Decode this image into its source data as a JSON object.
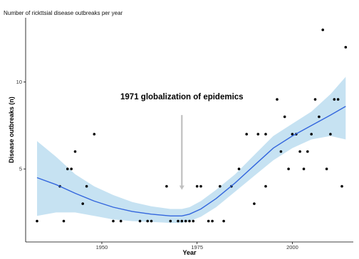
{
  "chart_data": {
    "type": "scatter",
    "title": "Number of rickttsial disease outbreaks per year",
    "xlabel": "Year",
    "ylabel": "Disease outbreaks (n)",
    "xlim": [
      1930,
      2016
    ],
    "ylim": [
      0.8,
      13.7
    ],
    "x_ticks": [
      1950,
      1975,
      2000
    ],
    "y_ticks": [
      5,
      10
    ],
    "grid": false,
    "points": [
      [
        1933,
        2
      ],
      [
        1939,
        4
      ],
      [
        1940,
        2
      ],
      [
        1941,
        5
      ],
      [
        1942,
        5
      ],
      [
        1943,
        6
      ],
      [
        1945,
        3
      ],
      [
        1946,
        4
      ],
      [
        1948,
        7
      ],
      [
        1953,
        2
      ],
      [
        1955,
        2
      ],
      [
        1960,
        2
      ],
      [
        1962,
        2
      ],
      [
        1963,
        2
      ],
      [
        1967,
        4
      ],
      [
        1968,
        2
      ],
      [
        1970,
        2
      ],
      [
        1971,
        2
      ],
      [
        1972,
        2
      ],
      [
        1973,
        2
      ],
      [
        1974,
        2
      ],
      [
        1975,
        4
      ],
      [
        1976,
        4
      ],
      [
        1978,
        2
      ],
      [
        1979,
        2
      ],
      [
        1981,
        4
      ],
      [
        1982,
        2
      ],
      [
        1984,
        4
      ],
      [
        1986,
        5
      ],
      [
        1988,
        7
      ],
      [
        1990,
        3
      ],
      [
        1991,
        7
      ],
      [
        1993,
        7
      ],
      [
        1993,
        4
      ],
      [
        1996,
        9
      ],
      [
        1997,
        6
      ],
      [
        1998,
        8
      ],
      [
        1999,
        5
      ],
      [
        2000,
        7
      ],
      [
        2001,
        7
      ],
      [
        2002,
        6
      ],
      [
        2003,
        5
      ],
      [
        2004,
        6
      ],
      [
        2005,
        7
      ],
      [
        2006,
        9
      ],
      [
        2007,
        8
      ],
      [
        2008,
        13
      ],
      [
        2009,
        5
      ],
      [
        2010,
        7
      ],
      [
        2011,
        9
      ],
      [
        2012,
        9
      ],
      [
        2013,
        4
      ],
      [
        2014,
        12
      ]
    ],
    "trend": {
      "type": "loess",
      "color": "#3366dd",
      "band_color": "#c6e2f2",
      "x": [
        1933,
        1938,
        1943,
        1948,
        1953,
        1958,
        1963,
        1968,
        1971,
        1973,
        1976,
        1980,
        1985,
        1990,
        1995,
        2000,
        2005,
        2010,
        2014
      ],
      "y": [
        4.5,
        4.1,
        3.6,
        3.15,
        2.8,
        2.55,
        2.4,
        2.3,
        2.3,
        2.4,
        2.7,
        3.3,
        4.2,
        5.2,
        6.2,
        6.9,
        7.5,
        8.1,
        8.6
      ],
      "lower": [
        2.3,
        2.5,
        2.5,
        2.3,
        2.1,
        2.0,
        1.95,
        1.9,
        1.9,
        2.0,
        2.25,
        2.8,
        3.7,
        4.6,
        5.5,
        6.2,
        6.7,
        6.9,
        6.7
      ],
      "upper": [
        6.6,
        5.7,
        4.7,
        4.0,
        3.5,
        3.1,
        2.85,
        2.7,
        2.7,
        2.8,
        3.15,
        3.8,
        4.7,
        5.8,
        6.9,
        7.6,
        8.3,
        9.3,
        10.3
      ]
    },
    "annotations": [
      {
        "text": "1971 globalization of epidemics",
        "arrow_x": 1971,
        "arrow_from_y": 8.1,
        "arrow_to_y": 3.8,
        "arrow_color": "#c0c0c0"
      }
    ],
    "point_color": "#000000"
  }
}
